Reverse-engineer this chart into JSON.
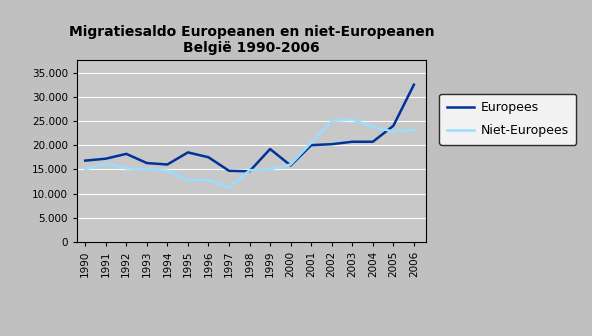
{
  "title": "Migratiesaldo Europeanen en niet-Europeanen\nBelgië 1990-2006",
  "years": [
    1990,
    1991,
    1992,
    1993,
    1994,
    1995,
    1996,
    1997,
    1998,
    1999,
    2000,
    2001,
    2002,
    2003,
    2004,
    2005,
    2006
  ],
  "europees": [
    16800,
    17200,
    18200,
    16300,
    16000,
    18500,
    17500,
    14700,
    14600,
    19200,
    15800,
    20000,
    20200,
    20700,
    20700,
    24000,
    32500
  ],
  "niet_europees": [
    15000,
    16200,
    15200,
    15000,
    14700,
    12800,
    12800,
    11200,
    14800,
    15000,
    16000,
    20500,
    25000,
    25300,
    23800,
    22800,
    23200
  ],
  "europees_color": "#003399",
  "niet_europees_color": "#99DDFF",
  "plot_bg_color": "#C8C8C8",
  "outer_bg_color": "#C0C0C0",
  "ylim": [
    0,
    37500
  ],
  "yticks": [
    0,
    5000,
    10000,
    15000,
    20000,
    25000,
    30000,
    35000
  ],
  "legend_europees": "Europees",
  "legend_niet_europees": "Niet-Europees",
  "title_fontsize": 10,
  "tick_fontsize": 7.5,
  "line_width": 1.8
}
